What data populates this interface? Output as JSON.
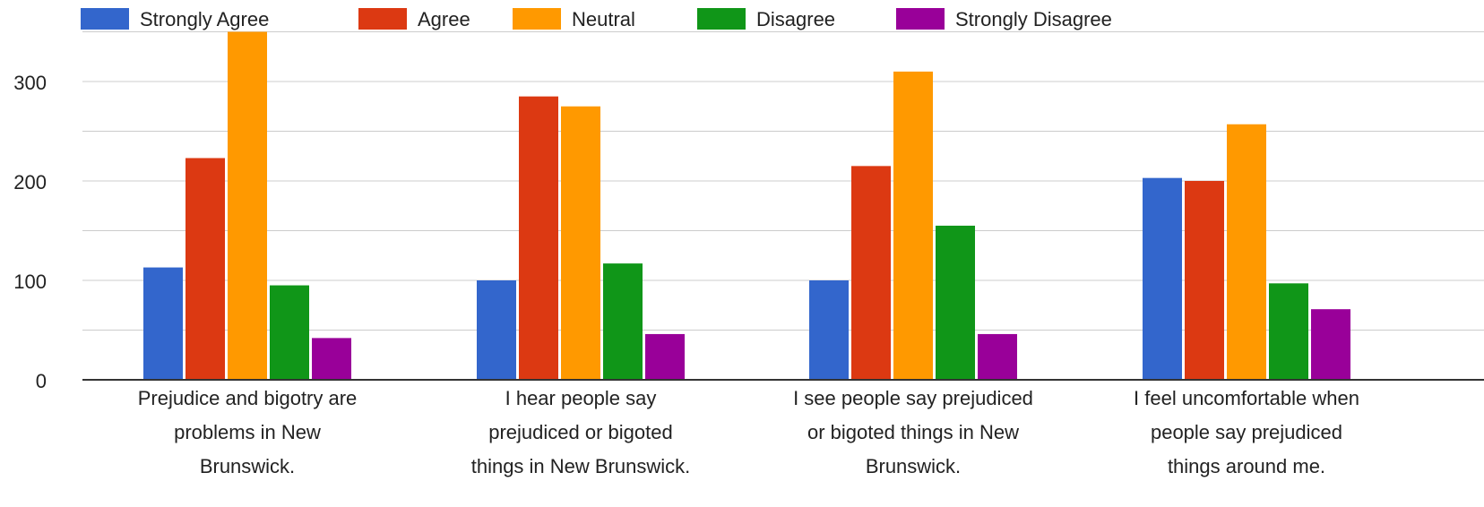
{
  "chart_data": {
    "type": "bar",
    "title": "",
    "xlabel": "",
    "ylabel": "",
    "ylim": [
      0,
      350
    ],
    "yticks": [
      0,
      100,
      200,
      300
    ],
    "grid": true,
    "legend_position": "top",
    "categories": [
      "Prejudice and bigotry are problems in New Brunswick.",
      "I hear people say prejudiced or bigoted things in New Brunswick.",
      "I see people say prejudiced or bigoted things in New Brunswick.",
      "I feel uncomfortable when people say prejudiced things around me."
    ],
    "category_label_lines": [
      [
        "Prejudice and bigotry are",
        "problems in New",
        "Brunswick."
      ],
      [
        "I hear people say",
        "prejudiced or bigoted",
        "things in New Brunswick."
      ],
      [
        "I see people say prejudiced",
        "or bigoted things in New",
        "Brunswick."
      ],
      [
        "I feel uncomfortable when",
        "people say prejudiced",
        "things around me."
      ]
    ],
    "series": [
      {
        "name": "Strongly Agree",
        "color": "#3366cc",
        "values": [
          113,
          100,
          100,
          203
        ]
      },
      {
        "name": "Agree",
        "color": "#dc3912",
        "values": [
          223,
          285,
          215,
          200
        ]
      },
      {
        "name": "Neutral",
        "color": "#ff9900",
        "values": [
          350,
          275,
          310,
          257
        ]
      },
      {
        "name": "Disagree",
        "color": "#109618",
        "values": [
          95,
          117,
          155,
          97
        ]
      },
      {
        "name": "Strongly Disagree",
        "color": "#990099",
        "values": [
          42,
          46,
          46,
          71
        ]
      }
    ]
  }
}
